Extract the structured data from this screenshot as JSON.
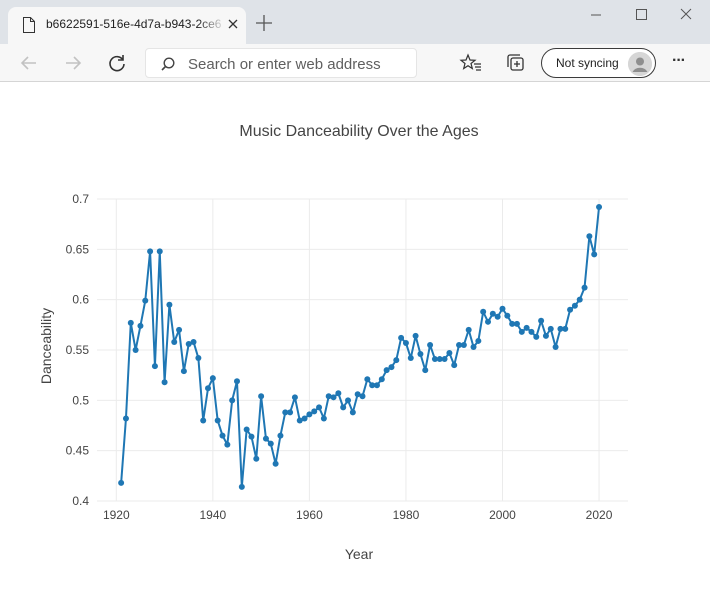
{
  "browser": {
    "tab_title": "b6622591-516e-4d7a-b943-2ce6",
    "address_placeholder": "Search or enter web address",
    "sync_label": "Not syncing",
    "more_label": "···"
  },
  "chart_data": {
    "type": "line",
    "title": "Music Danceability Over the Ages",
    "xlabel": "Year",
    "ylabel": "Danceability",
    "xlim": [
      1916,
      2026
    ],
    "ylim": [
      0.4,
      0.7
    ],
    "x_ticks": [
      1920,
      1940,
      1960,
      1980,
      2000,
      2020
    ],
    "y_ticks": [
      0.4,
      0.45,
      0.5,
      0.55,
      0.6,
      0.65,
      0.7
    ],
    "y_tick_labels": [
      "0.4",
      "0.45",
      "0.5",
      "0.55",
      "0.6",
      "0.65",
      "0.7"
    ],
    "grid": true,
    "line_color": "#1f77b4",
    "series": [
      {
        "x": [
          1921,
          1922,
          1923,
          1924,
          1925,
          1926,
          1927,
          1928,
          1929,
          1930,
          1931,
          1932,
          1933,
          1934,
          1935,
          1936,
          1937,
          1938,
          1939,
          1940,
          1941,
          1942,
          1943,
          1944,
          1945,
          1946,
          1947,
          1948,
          1949,
          1950,
          1951,
          1952,
          1953,
          1954,
          1955,
          1956,
          1957,
          1958,
          1959,
          1960,
          1961,
          1962,
          1963,
          1964,
          1965,
          1966,
          1967,
          1968,
          1969,
          1970,
          1971,
          1972,
          1973,
          1974,
          1975,
          1976,
          1977,
          1978,
          1979,
          1980,
          1981,
          1982,
          1983,
          1984,
          1985,
          1986,
          1987,
          1988,
          1989,
          1990,
          1991,
          1992,
          1993,
          1994,
          1995,
          1996,
          1997,
          1998,
          1999,
          2000,
          2001,
          2002,
          2003,
          2004,
          2005,
          2006,
          2007,
          2008,
          2009,
          2010,
          2011,
          2012,
          2013,
          2014,
          2015,
          2016,
          2017,
          2018,
          2019,
          2020
        ],
        "y": [
          0.418,
          0.482,
          0.577,
          0.55,
          0.574,
          0.599,
          0.648,
          0.534,
          0.648,
          0.518,
          0.595,
          0.558,
          0.57,
          0.529,
          0.556,
          0.558,
          0.542,
          0.48,
          0.512,
          0.522,
          0.48,
          0.465,
          0.456,
          0.5,
          0.519,
          0.414,
          0.471,
          0.464,
          0.442,
          0.504,
          0.462,
          0.457,
          0.437,
          0.465,
          0.488,
          0.488,
          0.503,
          0.48,
          0.482,
          0.486,
          0.489,
          0.493,
          0.482,
          0.504,
          0.503,
          0.507,
          0.493,
          0.5,
          0.488,
          0.506,
          0.504,
          0.521,
          0.515,
          0.515,
          0.521,
          0.53,
          0.533,
          0.54,
          0.562,
          0.557,
          0.542,
          0.564,
          0.546,
          0.53,
          0.555,
          0.541,
          0.541,
          0.541,
          0.547,
          0.535,
          0.555,
          0.555,
          0.57,
          0.553,
          0.559,
          0.588,
          0.578,
          0.586,
          0.583,
          0.591,
          0.584,
          0.576,
          0.576,
          0.568,
          0.572,
          0.568,
          0.563,
          0.579,
          0.564,
          0.571,
          0.553,
          0.571,
          0.571,
          0.59,
          0.594,
          0.6,
          0.612,
          0.663,
          0.645,
          0.692
        ]
      }
    ]
  }
}
